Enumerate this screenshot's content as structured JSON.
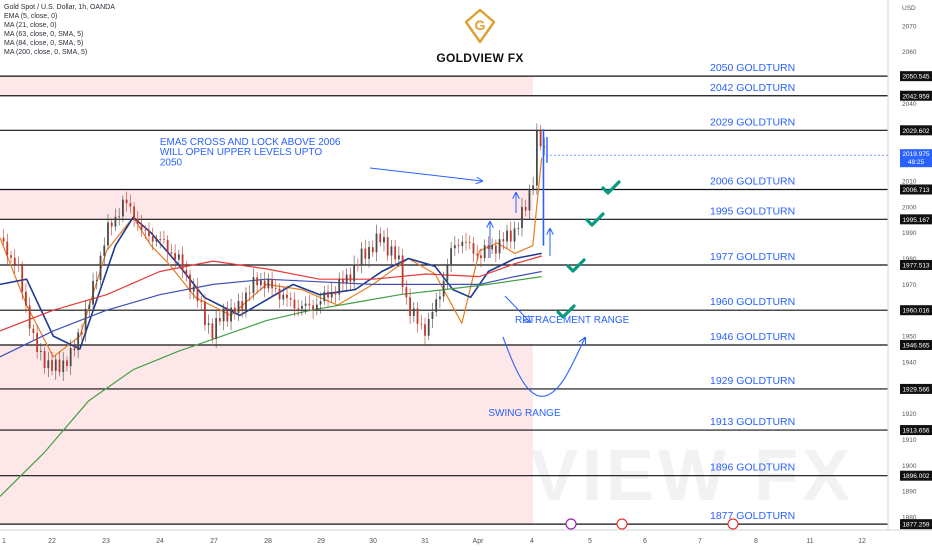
{
  "header": {
    "symbol": "Gold Spot / U.S. Dollar, 1h, OANDA",
    "indicators": [
      "EMA (5, close, 0)",
      "MA (21, close, 0)",
      "MA (63, close, 0, SMA, 5)",
      "MA (84, close, 0, SMA, 5)",
      "MA (200, close, 0, SMA, 5)"
    ],
    "currency": "USD",
    "logo_text": "GOLDVIEW FX",
    "logo_letter": "G",
    "watermark": "GOLDVIEW FX"
  },
  "colors": {
    "candle": "#c0392b",
    "ema5": "#e67e22",
    "ma21": "#1f3a93",
    "ma63": "#e53935",
    "ma84": "#3f51b5",
    "ma200": "#43a047",
    "annotation": "#2962ff",
    "zone": "#fde7e9",
    "check": "#089981"
  },
  "chart_data": {
    "type": "line",
    "title": "Gold Spot / U.S. Dollar, 1h, OANDA",
    "y_axis": {
      "ylim": [
        1875,
        2080
      ],
      "ticks": [
        2070,
        2060,
        2050,
        2040,
        2030,
        2020,
        2010,
        2000,
        1990,
        1980,
        1970,
        1960,
        1950,
        1940,
        1930,
        1920,
        1910,
        1900,
        1890,
        1880
      ]
    },
    "x_axis": {
      "ticks": [
        "1",
        "22",
        "23",
        "24",
        "26",
        "27",
        "28",
        "29",
        "30",
        "31",
        "Apr",
        "3",
        "4",
        "5",
        "6",
        "7",
        "8",
        "11",
        "12"
      ]
    },
    "x_range": [
      0,
      100
    ],
    "levels": [
      {
        "label": "2050 GOLDTURN",
        "price": 2050.545,
        "tag": "2050.545"
      },
      {
        "label": "2042 GOLDTURN",
        "price": 2042.959,
        "tag": "2042.959"
      },
      {
        "label": "2029 GOLDTURN",
        "price": 2029.602,
        "tag": "2029.602"
      },
      {
        "label": "2006 GOLDTURN",
        "price": 2006.713,
        "tag": "2006.713"
      },
      {
        "label": "1995 GOLDTURN",
        "price": 1995.167,
        "tag": "1995.167"
      },
      {
        "label": "1977 GOLDTURN",
        "price": 1977.513,
        "tag": "1977.513"
      },
      {
        "label": "1960 GOLDTURN",
        "price": 1960.016,
        "tag": "1960.016"
      },
      {
        "label": "1946 GOLDTURN",
        "price": 1946.565,
        "tag": "1946.565"
      },
      {
        "label": "1929 GOLDTURN",
        "price": 1929.566,
        "tag": "1929.566"
      },
      {
        "label": "1913 GOLDTURN",
        "price": 1913.656,
        "tag": "1913.656"
      },
      {
        "label": "1896 GOLDTURN",
        "price": 1896.002,
        "tag": "1896.002"
      },
      {
        "label": "1877 GOLDTURN",
        "price": 1877.259,
        "tag": "1877.259"
      }
    ],
    "current_price": {
      "tag": "2019.975",
      "countdown": "48:25",
      "value": 2019.975
    },
    "zones": [
      {
        "x_end": 60,
        "top": 2050.545,
        "bottom": 2042.959
      },
      {
        "x_end": 60,
        "top": 2006.713,
        "bottom": 1995.167
      },
      {
        "x_end": 60,
        "top": 1946.565,
        "bottom": 1877.259
      }
    ],
    "annotations": [
      {
        "text": "EMA5 CROSS AND LOCK ABOVE 2006",
        "x": 18,
        "y": 2024
      },
      {
        "text": "WILL OPEN UPPER LEVELS UPTO",
        "x": 18,
        "y": 2020
      },
      {
        "text": "2050",
        "x": 18,
        "y": 2016
      },
      {
        "text": "RETRACEMENT RANGE",
        "x": 58,
        "y": 1955
      },
      {
        "text": "SWING RANGE",
        "x": 55,
        "y": 1919
      }
    ],
    "series": [
      {
        "name": "EMA5",
        "x": [
          0,
          3,
          6,
          9,
          12,
          15,
          17,
          19,
          22,
          26,
          30,
          34,
          38,
          42,
          46,
          49,
          52,
          54,
          56,
          58,
          60,
          61
        ],
        "y": [
          1988,
          1962,
          1942,
          1950,
          1983,
          1996,
          1985,
          1978,
          1965,
          1958,
          1970,
          1968,
          1962,
          1970,
          1980,
          1974,
          1955,
          1983,
          1986,
          1982,
          1985,
          2019
        ]
      },
      {
        "name": "MA21",
        "x": [
          0,
          3,
          6,
          9,
          11,
          13,
          15,
          17,
          20,
          23,
          27,
          30,
          33,
          36,
          40,
          43,
          46,
          49,
          51,
          53,
          55,
          58,
          61
        ],
        "y": [
          1970,
          1972,
          1950,
          1945,
          1965,
          1985,
          1996,
          1990,
          1978,
          1965,
          1958,
          1964,
          1970,
          1966,
          1968,
          1975,
          1980,
          1977,
          1968,
          1965,
          1975,
          1980,
          1982
        ]
      },
      {
        "name": "MA63",
        "x": [
          0,
          6,
          12,
          18,
          24,
          30,
          36,
          42,
          48,
          54,
          58,
          61
        ],
        "y": [
          1952,
          1960,
          1966,
          1975,
          1979,
          1976,
          1972,
          1972,
          1974,
          1973,
          1978,
          1981
        ]
      },
      {
        "name": "MA84",
        "x": [
          0,
          6,
          12,
          18,
          24,
          30,
          36,
          42,
          48,
          54,
          58,
          61
        ],
        "y": [
          1942,
          1952,
          1960,
          1966,
          1970,
          1972,
          1971,
          1970,
          1970,
          1970,
          1973,
          1975
        ]
      },
      {
        "name": "MA200",
        "x": [
          0,
          5,
          10,
          15,
          20,
          25,
          30,
          35,
          40,
          45,
          50,
          55,
          61
        ],
        "y": [
          1888,
          1905,
          1925,
          1937,
          1944,
          1950,
          1956,
          1960,
          1963,
          1966,
          1968,
          1970,
          1973
        ]
      }
    ],
    "price_path": {
      "x": [
        0,
        2,
        4,
        6,
        8,
        10,
        12,
        14,
        15,
        16,
        18,
        20,
        22,
        24,
        25,
        26,
        27,
        29,
        31,
        33,
        35,
        37,
        39,
        41,
        43,
        44,
        45,
        46,
        48,
        50,
        51,
        52,
        53,
        54,
        55,
        56,
        57,
        58,
        59,
        60,
        60.5,
        61,
        61.5
      ],
      "y": [
        1988,
        1976,
        1945,
        1937,
        1942,
        1962,
        1990,
        2002,
        1998,
        1990,
        1987,
        1980,
        1966,
        1950,
        1960,
        1958,
        1962,
        1972,
        1968,
        1962,
        1961,
        1966,
        1972,
        1982,
        1988,
        1983,
        1978,
        1960,
        1952,
        1972,
        1985,
        1987,
        1984,
        1981,
        1984,
        1985,
        1988,
        1991,
        1998,
        2010,
        2028,
        2023,
        2019.975
      ]
    }
  }
}
